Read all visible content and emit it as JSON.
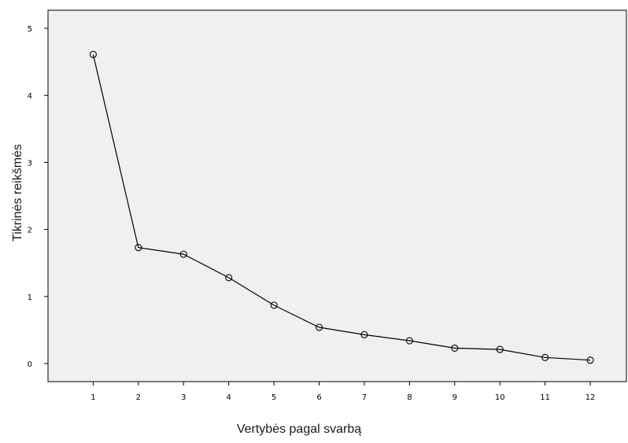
{
  "chart_data": {
    "type": "line",
    "title": "",
    "xlabel": "Vertybės pagal svarbą",
    "ylabel": "Tikrinės reikšmės",
    "x": [
      1,
      2,
      3,
      4,
      5,
      6,
      7,
      8,
      9,
      10,
      11,
      12
    ],
    "x_tick_labels": [
      "1",
      "2",
      "3",
      "4",
      "5",
      "6",
      "7",
      "8",
      "9",
      "10",
      "11",
      "12"
    ],
    "y_ticks": [
      0,
      1,
      2,
      3,
      4,
      5
    ],
    "series": [
      {
        "values": [
          4.61,
          1.73,
          1.63,
          1.28,
          0.87,
          0.54,
          0.43,
          0.34,
          0.23,
          0.21,
          0.09,
          0.05
        ]
      }
    ],
    "ylim": [
      -0.27,
      5.27
    ],
    "xlim": [
      0.0,
      12.8
    ],
    "grid": false,
    "marker": "open-circle",
    "colors": {
      "plot_background": "#f0f0f0",
      "line": "#000000",
      "frame": "#000000"
    }
  }
}
